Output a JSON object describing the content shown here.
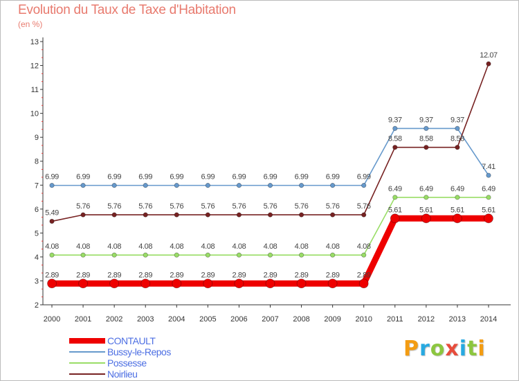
{
  "title": "Evolution du Taux de Taxe d'Habitation",
  "subtitle": "(en %)",
  "brand": {
    "text": "Proxiti",
    "colors": [
      "#f39c12",
      "#27a9e1",
      "#8cc63f",
      "#e74c3c",
      "#27a9e1",
      "#8cc63f",
      "#f39c12"
    ]
  },
  "chart_data": {
    "type": "line",
    "title": "Evolution du Taux de Taxe d'Habitation",
    "ylabel": "(en %)",
    "xlabel": "",
    "x": [
      "2000",
      "2001",
      "2002",
      "2003",
      "2004",
      "2005",
      "2006",
      "2007",
      "2008",
      "2009",
      "2010",
      "2011",
      "2012",
      "2013",
      "2014"
    ],
    "ylim": [
      2,
      13
    ],
    "yticks": [
      2,
      3,
      4,
      5,
      6,
      7,
      8,
      9,
      10,
      11,
      12,
      13
    ],
    "grid": false,
    "legend_position": "bottom-left",
    "series": [
      {
        "name": "CONTAULT",
        "color": "#ee0000",
        "values": [
          2.89,
          2.89,
          2.89,
          2.89,
          2.89,
          2.89,
          2.89,
          2.89,
          2.89,
          2.89,
          2.89,
          5.61,
          5.61,
          5.61,
          5.61
        ],
        "labels": [
          "2.89",
          "2.89",
          "2.89",
          "2.89",
          "2.89",
          "2.89",
          "2.89",
          "2.89",
          "2.89",
          "2.89",
          "2.89",
          "5.61",
          "5.61",
          "5.61",
          "5.61"
        ]
      },
      {
        "name": "Bussy-le-Repos",
        "color": "#6699cc",
        "values": [
          6.99,
          6.99,
          6.99,
          6.99,
          6.99,
          6.99,
          6.99,
          6.99,
          6.99,
          6.99,
          6.99,
          9.37,
          9.37,
          9.37,
          7.41
        ],
        "labels": [
          "6.99",
          "6.99",
          "6.99",
          "6.99",
          "6.99",
          "6.99",
          "6.99",
          "6.99",
          "6.99",
          "6.99",
          "6.99",
          "9.37",
          "9.37",
          "9.37",
          "7.41"
        ]
      },
      {
        "name": "Possesse",
        "color": "#99dd66",
        "values": [
          4.08,
          4.08,
          4.08,
          4.08,
          4.08,
          4.08,
          4.08,
          4.08,
          4.08,
          4.08,
          4.08,
          6.49,
          6.49,
          6.49,
          6.49
        ],
        "labels": [
          "4.08",
          "4.08",
          "4.08",
          "4.08",
          "4.08",
          "4.08",
          "4.08",
          "4.08",
          "4.08",
          "4.08",
          "4.08",
          "6.49",
          "6.49",
          "6.49",
          "6.49"
        ]
      },
      {
        "name": "Noirlieu",
        "color": "#772222",
        "values": [
          5.49,
          5.76,
          5.76,
          5.76,
          5.76,
          5.76,
          5.76,
          5.76,
          5.76,
          5.76,
          5.76,
          8.58,
          8.58,
          8.58,
          12.07
        ],
        "labels": [
          "5.49",
          "5.76",
          "5.76",
          "5.76",
          "5.76",
          "5.76",
          "5.76",
          "5.76",
          "5.76",
          "5.76",
          "5.76",
          "8.58",
          "8.58",
          "8.58",
          "12.07"
        ]
      }
    ]
  }
}
